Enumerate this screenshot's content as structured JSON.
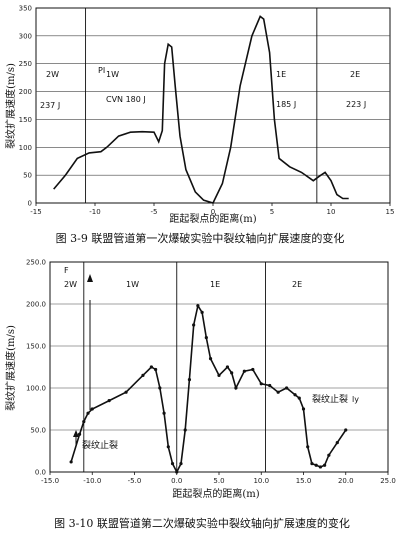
{
  "chart_data": [
    {
      "type": "line",
      "caption": "图 3-9 联盟管道第一次爆破实验中裂纹轴向扩展速度的变化",
      "xlabel": "距起裂点的距离(m)",
      "ylabel": "裂纹扩展速度(m/s)",
      "xlim": [
        -15,
        15
      ],
      "ylim": [
        0,
        350
      ],
      "x_ticks": [
        "-15",
        "-10",
        "-5",
        "0",
        "5",
        "10",
        "15"
      ],
      "y_ticks": [
        "0",
        "50",
        "100",
        "150",
        "200",
        "250",
        "300",
        "350"
      ],
      "grid": true,
      "zones": [
        {
          "name": "2W",
          "toughness": "237 J"
        },
        {
          "name": "1W",
          "marker": "PI",
          "toughness": "CVN 180 J"
        },
        {
          "name": "1E",
          "toughness": "185 J"
        },
        {
          "name": "2E",
          "toughness": "223 J"
        }
      ],
      "zone_boundaries_x": [
        -10.8,
        8.8
      ],
      "series": [
        {
          "x": [
            -13.5,
            -12.5,
            -11.5,
            -10.5,
            -9.5,
            -9,
            -8.5,
            -8,
            -7,
            -6,
            -5,
            -4.6,
            -4.3,
            -4.1,
            -3.8,
            -3.5,
            -3.2,
            -2.8,
            -2.3,
            -1.5,
            -0.8,
            0,
            0.8,
            1.5,
            2.3,
            3.3,
            4,
            4.3,
            4.8,
            5.2,
            5.6,
            6.5,
            7.5,
            8.5,
            9,
            9.5,
            10,
            10.5,
            11,
            11.5
          ],
          "y": [
            25,
            50,
            80,
            90,
            92,
            100,
            110,
            120,
            127,
            128,
            127,
            110,
            130,
            250,
            285,
            280,
            210,
            120,
            60,
            20,
            5,
            0,
            35,
            100,
            210,
            300,
            335,
            330,
            270,
            150,
            80,
            65,
            55,
            40,
            48,
            55,
            40,
            15,
            8,
            8
          ]
        }
      ]
    },
    {
      "type": "line",
      "caption": "图 3-10 联盟管道第二次爆破实验中裂纹轴向扩展速度的变化",
      "xlabel": "距起裂点的距离(m)",
      "ylabel": "裂纹扩展速度(m/s)",
      "xlim": [
        -15,
        25
      ],
      "ylim": [
        0,
        250
      ],
      "x_ticks": [
        "-15.0",
        "-10.0",
        "-5.0",
        "0.0",
        "5.0",
        "10.0",
        "15.0",
        "20.0",
        "25.0"
      ],
      "y_ticks": [
        "0.0",
        "50.0",
        "100.0",
        "150.0",
        "200.0",
        "250.0"
      ],
      "grid": true,
      "zones": [
        {
          "name": "2W"
        },
        {
          "name": "1W"
        },
        {
          "name": "1E"
        },
        {
          "name": "2E"
        }
      ],
      "zone_labels": [
        "F",
        "2W",
        "1W",
        "1E",
        "2E",
        "ly"
      ],
      "zone_boundaries_x": [
        -11,
        0,
        10.5
      ],
      "annotations": [
        "裂纹止裂",
        "裂纹止裂"
      ],
      "series": [
        {
          "x": [
            -12.5,
            -11.5,
            -11,
            -10.5,
            -10,
            -8,
            -6,
            -4,
            -3,
            -2.5,
            -2,
            -1.5,
            -1,
            -0.5,
            0,
            0.5,
            1,
            1.5,
            2,
            2.5,
            3,
            3.5,
            4,
            5,
            6,
            6.5,
            7,
            8,
            9,
            10,
            11,
            12,
            13,
            14,
            14.5,
            15,
            15.5,
            16,
            16.5,
            17,
            17.5,
            18,
            19,
            20
          ],
          "y": [
            12,
            45,
            60,
            70,
            75,
            85,
            95,
            115,
            125,
            122,
            100,
            70,
            30,
            10,
            0,
            10,
            50,
            110,
            175,
            198,
            190,
            160,
            135,
            115,
            125,
            118,
            100,
            120,
            122,
            105,
            103,
            95,
            100,
            92,
            88,
            75,
            30,
            10,
            8,
            6,
            8,
            20,
            35,
            50
          ]
        }
      ]
    }
  ]
}
